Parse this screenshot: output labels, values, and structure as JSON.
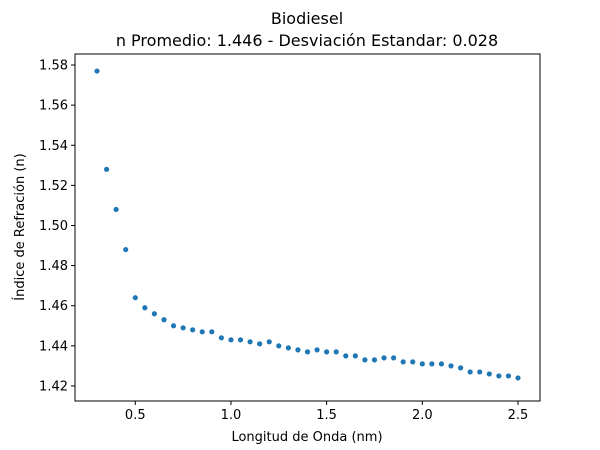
{
  "chart_data": {
    "type": "scatter",
    "title": "Biodiesel",
    "subtitle": "n Promedio: 1.446 - Desviación Estandar: 0.028",
    "xlabel": "Longitud de Onda (nm)",
    "ylabel": "Índice de Refración (n)",
    "xlim": [
      0.185,
      2.615
    ],
    "ylim": [
      1.4125,
      1.5855
    ],
    "x_ticks": [
      0.5,
      1.0,
      1.5,
      2.0,
      2.5
    ],
    "x_tick_labels": [
      "0.5",
      "1.0",
      "1.5",
      "2.0",
      "2.5"
    ],
    "y_ticks": [
      1.42,
      1.44,
      1.46,
      1.48,
      1.5,
      1.52,
      1.54,
      1.56,
      1.58
    ],
    "y_tick_labels": [
      "1.42",
      "1.44",
      "1.46",
      "1.48",
      "1.50",
      "1.52",
      "1.54",
      "1.56",
      "1.58"
    ],
    "grid": false,
    "legend": "none",
    "marker_color": "#1f77b4",
    "series": [
      {
        "x": [
          0.3,
          0.35,
          0.4,
          0.45,
          0.5,
          0.55,
          0.6,
          0.65,
          0.7,
          0.75,
          0.8,
          0.85,
          0.9,
          0.95,
          1.0,
          1.05,
          1.1,
          1.15,
          1.2,
          1.25,
          1.3,
          1.35,
          1.4,
          1.45,
          1.5,
          1.55,
          1.6,
          1.65,
          1.7,
          1.75,
          1.8,
          1.85,
          1.9,
          1.95,
          2.0,
          2.05,
          2.1,
          2.15,
          2.2,
          2.25,
          2.3,
          2.35,
          2.4,
          2.45,
          2.5
        ],
        "y": [
          1.577,
          1.528,
          1.508,
          1.488,
          1.464,
          1.459,
          1.456,
          1.453,
          1.45,
          1.449,
          1.448,
          1.447,
          1.447,
          1.444,
          1.443,
          1.443,
          1.442,
          1.441,
          1.442,
          1.44,
          1.439,
          1.438,
          1.437,
          1.438,
          1.437,
          1.437,
          1.435,
          1.435,
          1.433,
          1.433,
          1.434,
          1.434,
          1.432,
          1.432,
          1.431,
          1.431,
          1.431,
          1.43,
          1.429,
          1.427,
          1.427,
          1.426,
          1.425,
          1.425,
          1.424
        ]
      }
    ]
  }
}
